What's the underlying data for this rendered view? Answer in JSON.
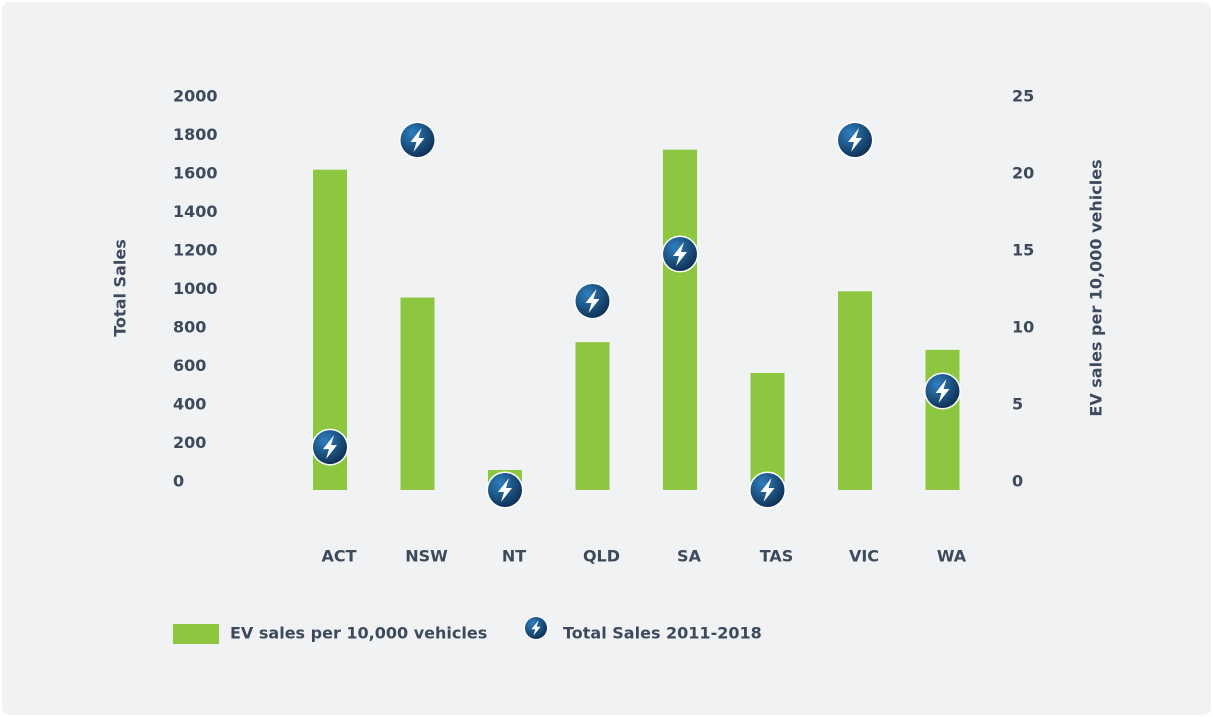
{
  "chart_data": {
    "type": "bar",
    "categories": [
      "ACT",
      "NSW",
      "NT",
      "QLD",
      "SA",
      "TAS",
      "VIC",
      "WA"
    ],
    "ylabel": "Total Sales",
    "y2label": "EV sales per 10,000 vehicles",
    "ylim": [
      0,
      2000
    ],
    "yticks": [
      0,
      200,
      400,
      600,
      800,
      1000,
      1200,
      1400,
      1600,
      1800,
      2000
    ],
    "y2lim": [
      0,
      25
    ],
    "y2ticks": [
      0,
      5,
      10,
      15,
      20,
      25
    ],
    "grid": false,
    "legend": "bottom",
    "series": [
      {
        "name": "EV sales per 10,000 vehicles",
        "type": "bar",
        "color": "#8dc63f",
        "axis": "y2",
        "values": [
          20.8,
          12.5,
          1.3,
          9.6,
          22.1,
          7.6,
          12.9,
          9.1
        ]
      },
      {
        "name": "Total Sales 2011-2018",
        "type": "scatter",
        "color": "#1b4f7c",
        "axis": "y",
        "values": [
          223,
          1818,
          0,
          982,
          1226,
          0,
          1818,
          514
        ]
      }
    ]
  }
}
